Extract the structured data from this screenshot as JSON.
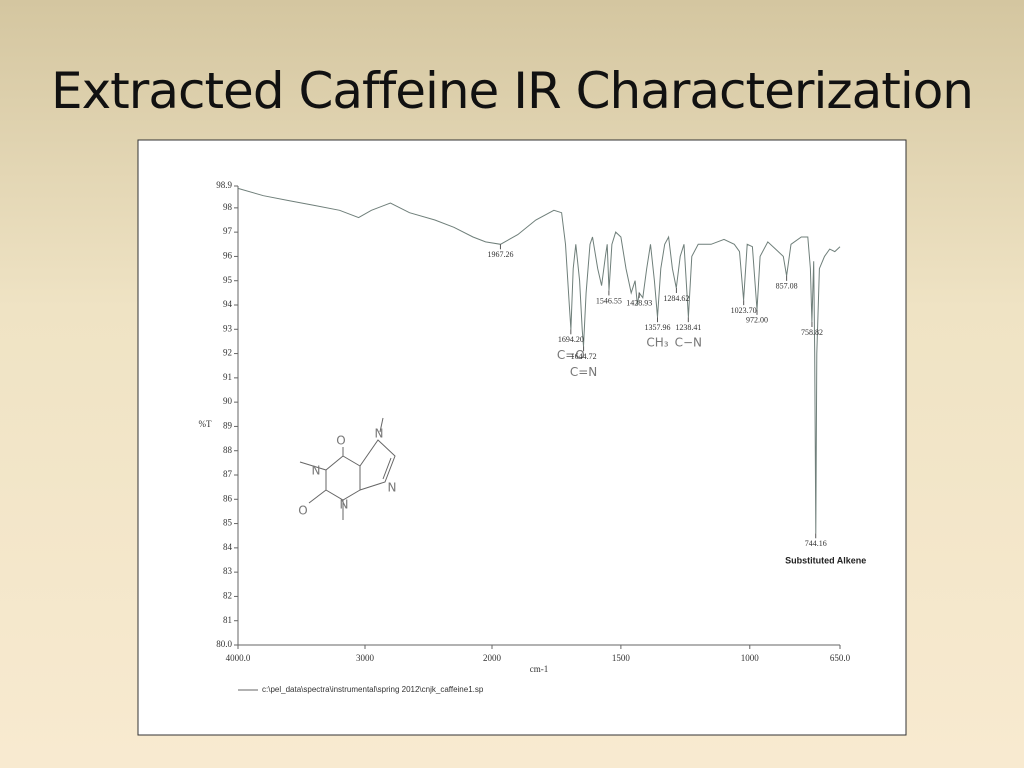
{
  "title": "Extracted Caffeine IR Characterization",
  "chart_data": {
    "type": "line",
    "x_label": "cm-1",
    "y_label": "%T",
    "xlim": [
      4000,
      650
    ],
    "x_scale_break": 2000,
    "ylim": [
      80,
      98.9
    ],
    "xticks": [
      {
        "value": 4000,
        "label": "4000.0"
      },
      3000,
      2000,
      1500,
      1000,
      {
        "value": 650,
        "label": "650.0"
      }
    ],
    "yticks": [
      {
        "value": 80,
        "label": "80.0"
      },
      81,
      82,
      83,
      84,
      85,
      86,
      87,
      88,
      89,
      90,
      91,
      92,
      93,
      94,
      95,
      96,
      97,
      98,
      98.9
    ],
    "x": [
      4000,
      3800,
      3600,
      3400,
      3200,
      3050,
      2950,
      2800,
      2650,
      2450,
      2300,
      2150,
      2050,
      1967,
      1900,
      1830,
      1760,
      1730,
      1715,
      1700,
      1694,
      1685,
      1675,
      1660,
      1650,
      1645,
      1635,
      1620,
      1610,
      1590,
      1575,
      1560,
      1553,
      1546,
      1535,
      1520,
      1500,
      1480,
      1460,
      1445,
      1436,
      1429,
      1415,
      1400,
      1385,
      1370,
      1358,
      1345,
      1330,
      1315,
      1300,
      1285,
      1270,
      1255,
      1238,
      1225,
      1200,
      1150,
      1100,
      1060,
      1040,
      1024,
      1010,
      990,
      972,
      960,
      930,
      900,
      870,
      857,
      840,
      800,
      775,
      765,
      759,
      752,
      748,
      744,
      740,
      730,
      710,
      690,
      670,
      650
    ],
    "series": [
      {
        "color": "#6f7f7a",
        "values": [
          98.8,
          98.5,
          98.3,
          98.1,
          97.9,
          97.6,
          97.9,
          98.2,
          97.8,
          97.5,
          97.2,
          96.8,
          96.6,
          96.5,
          96.9,
          97.5,
          97.9,
          97.8,
          96.5,
          94.0,
          93.0,
          95.5,
          96.5,
          95.0,
          93.0,
          92.3,
          94.5,
          96.5,
          96.8,
          95.5,
          94.8,
          96.0,
          96.5,
          94.6,
          96.5,
          97.0,
          96.8,
          95.5,
          94.5,
          95.0,
          94.0,
          94.5,
          94.3,
          95.5,
          96.5,
          95.0,
          93.5,
          95.5,
          96.5,
          96.8,
          95.5,
          94.7,
          96.0,
          96.5,
          93.5,
          96.0,
          96.5,
          96.5,
          96.7,
          96.5,
          96.2,
          94.2,
          96.5,
          96.4,
          93.8,
          96.0,
          96.6,
          96.3,
          96.0,
          95.2,
          96.5,
          96.8,
          96.8,
          95.5,
          93.3,
          95.8,
          92.0,
          84.6,
          92.0,
          95.5,
          96.0,
          96.3,
          96.2,
          96.4
        ]
      }
    ],
    "peaks": [
      {
        "x": 1967.26,
        "y": 96.5,
        "label": "1967.26"
      },
      {
        "x": 1694.2,
        "y": 93.0,
        "label": "1694.20",
        "note": "C=O"
      },
      {
        "x": 1644.72,
        "y": 92.3,
        "label": "1644.72",
        "note": "C=N"
      },
      {
        "x": 1546.55,
        "y": 94.6,
        "label": "1546.55"
      },
      {
        "x": 1428.93,
        "y": 94.5,
        "label": "1428.93"
      },
      {
        "x": 1357.96,
        "y": 93.5,
        "label": "1357.96",
        "note": "CH₃"
      },
      {
        "x": 1284.62,
        "y": 94.7,
        "label": "1284.62"
      },
      {
        "x": 1238.41,
        "y": 93.5,
        "label": "1238.41",
        "note": "C−N"
      },
      {
        "x": 1023.7,
        "y": 94.2,
        "label": "1023.70"
      },
      {
        "x": 972.0,
        "y": 93.8,
        "label": "972.00"
      },
      {
        "x": 857.08,
        "y": 95.2,
        "label": "857.08"
      },
      {
        "x": 758.82,
        "y": 93.3,
        "label": "758.82"
      },
      {
        "x": 744.16,
        "y": 84.6,
        "label": "744.16",
        "note": "Substituted Alkene"
      }
    ]
  },
  "footer": "c:\\pel_data\\spectra\\instrumental\\spring 2012\\cnjk_caffeine1.sp",
  "structure": {
    "atoms": [
      "O",
      "N",
      "N",
      "O",
      "N",
      "N"
    ]
  }
}
